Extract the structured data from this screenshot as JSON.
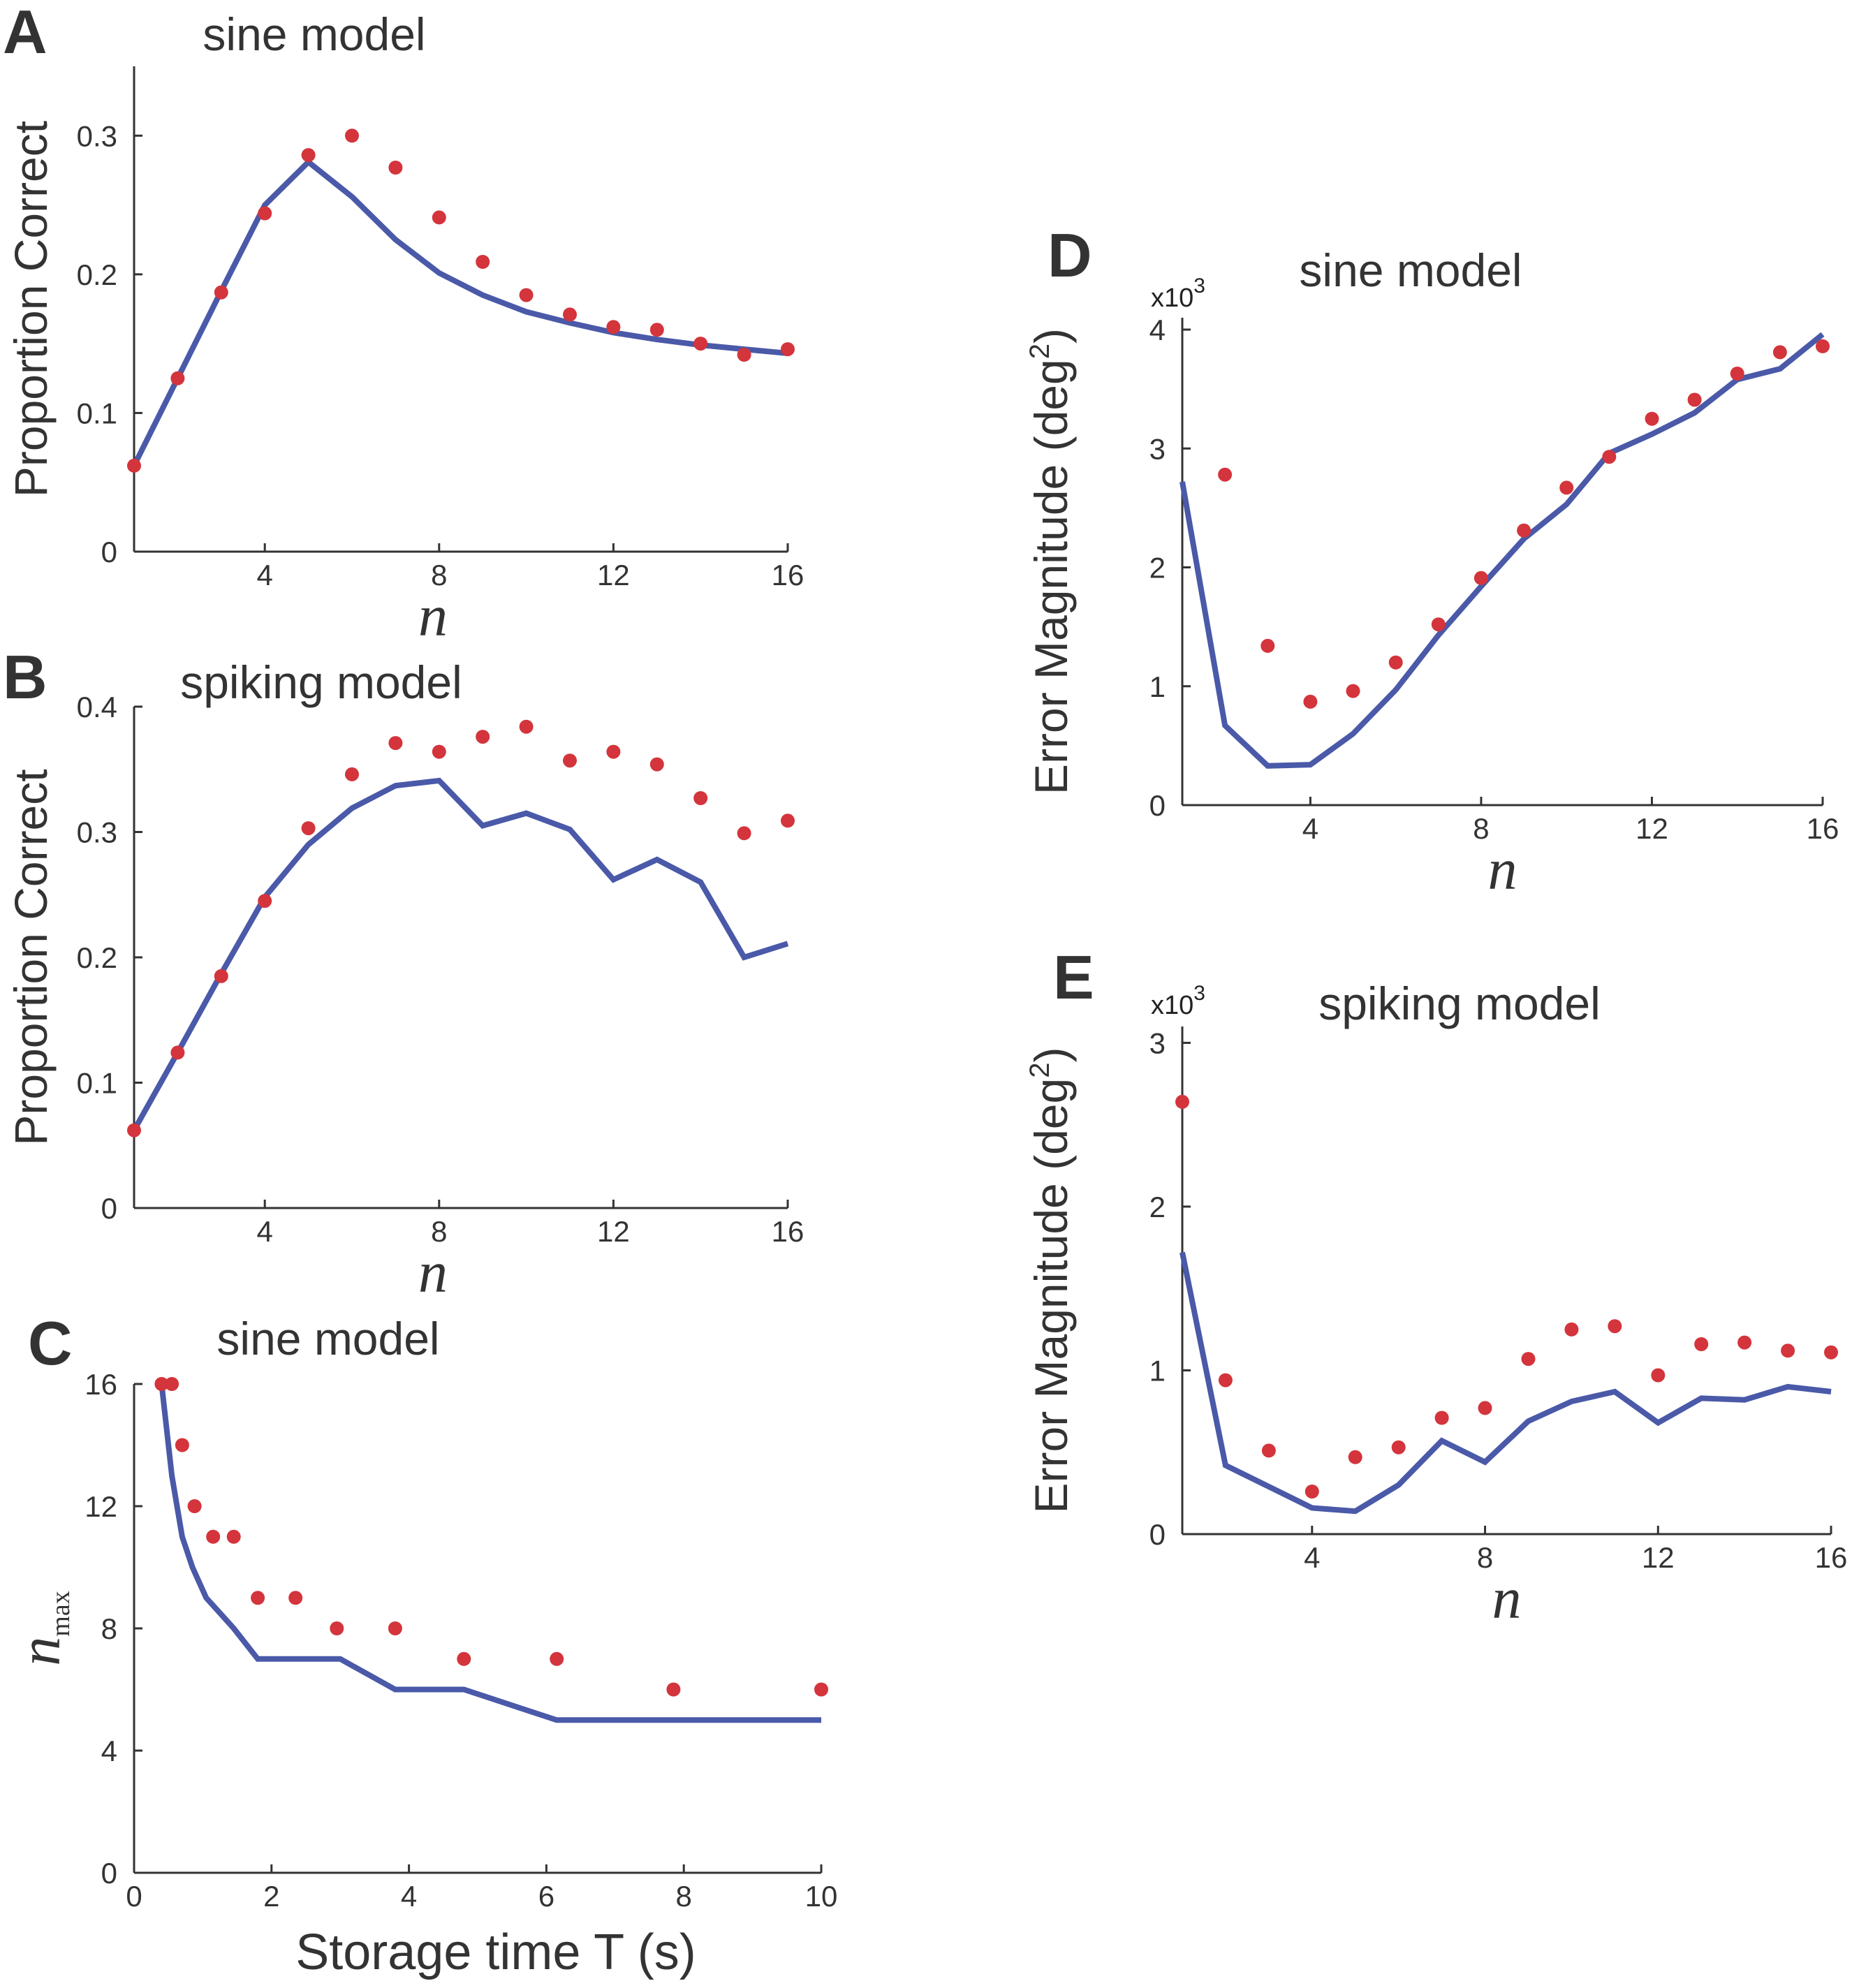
{
  "colors": {
    "model_line": "#4a59a8",
    "data_points": "#d4343c",
    "axis": "#333333"
  },
  "chart_data": [
    {
      "id": "A",
      "panel_letter": "A",
      "type": "line+scatter",
      "title": "sine model",
      "ylabel": "Proportion Correct",
      "xlabel": "n",
      "xlim": [
        1,
        16
      ],
      "ylim": [
        0,
        0.35
      ],
      "xticks": [
        4,
        8,
        12,
        16
      ],
      "xtick_labels": [
        "4",
        "8",
        "12",
        "16"
      ],
      "yticks": [
        0,
        0.1,
        0.2,
        0.3
      ],
      "ytick_labels": [
        "0",
        "0.1",
        "0.2",
        "0.3"
      ],
      "line": {
        "x": [
          1,
          2,
          3,
          4,
          5,
          6,
          7,
          8,
          9,
          10,
          11,
          12,
          13,
          14,
          15,
          16
        ],
        "y": [
          0.062,
          0.125,
          0.188,
          0.25,
          0.281,
          0.256,
          0.225,
          0.201,
          0.185,
          0.173,
          0.165,
          0.158,
          0.153,
          0.149,
          0.146,
          0.143
        ]
      },
      "points": {
        "x": [
          1,
          2,
          3,
          4,
          5,
          6,
          7,
          8,
          9,
          10,
          11,
          12,
          13,
          14,
          15,
          16
        ],
        "y": [
          0.062,
          0.125,
          0.187,
          0.244,
          0.286,
          0.3,
          0.277,
          0.241,
          0.209,
          0.185,
          0.171,
          0.162,
          0.16,
          0.15,
          0.142,
          0.146
        ]
      }
    },
    {
      "id": "B",
      "panel_letter": "B",
      "type": "line+scatter",
      "title": "spiking model",
      "ylabel": "Proportion Correct",
      "xlabel": "n",
      "xlim": [
        1,
        16
      ],
      "ylim": [
        0,
        0.4
      ],
      "xticks": [
        4,
        8,
        12,
        16
      ],
      "xtick_labels": [
        "4",
        "8",
        "12",
        "16"
      ],
      "yticks": [
        0,
        0.1,
        0.2,
        0.3,
        0.4
      ],
      "ytick_labels": [
        "0",
        "0.1",
        "0.2",
        "0.3",
        "0.4"
      ],
      "line": {
        "x": [
          1,
          2,
          3,
          4,
          5,
          6,
          7,
          8,
          9,
          10,
          11,
          12,
          13,
          14,
          15,
          16
        ],
        "y": [
          0.062,
          0.124,
          0.187,
          0.248,
          0.29,
          0.319,
          0.337,
          0.341,
          0.305,
          0.315,
          0.302,
          0.262,
          0.278,
          0.26,
          0.2,
          0.211
        ]
      },
      "points": {
        "x": [
          1,
          2,
          3,
          4,
          5,
          6,
          7,
          8,
          9,
          10,
          11,
          12,
          13,
          14,
          15,
          16
        ],
        "y": [
          0.062,
          0.124,
          0.185,
          0.245,
          0.303,
          0.346,
          0.371,
          0.364,
          0.376,
          0.384,
          0.357,
          0.364,
          0.354,
          0.327,
          0.299,
          0.309
        ]
      }
    },
    {
      "id": "C",
      "panel_letter": "C",
      "type": "line+scatter",
      "title": "sine model",
      "ylabel": "n",
      "ylabel_sub": "max",
      "xlabel": "Storage time T (s)",
      "xlim": [
        0,
        10
      ],
      "ylim": [
        0,
        16
      ],
      "xticks": [
        0,
        2,
        4,
        6,
        8,
        10
      ],
      "xtick_labels": [
        "0",
        "2",
        "4",
        "6",
        "8",
        "10"
      ],
      "yticks": [
        0,
        4,
        8,
        12,
        16
      ],
      "ytick_labels": [
        "0",
        "4",
        "8",
        "12",
        "16"
      ],
      "line": {
        "x": [
          0.4,
          0.55,
          0.7,
          0.85,
          1.05,
          1.25,
          1.45,
          1.8,
          3.0,
          3.8,
          4.8,
          6.15,
          10.0
        ],
        "y": [
          16,
          13,
          11,
          10,
          9,
          8.5,
          8,
          7,
          7,
          6,
          6,
          5,
          5
        ]
      },
      "points": {
        "x": [
          0.4,
          0.55,
          0.7,
          0.88,
          1.15,
          1.45,
          1.8,
          2.35,
          2.95,
          3.8,
          4.8,
          6.15,
          7.85,
          10.0
        ],
        "y": [
          16,
          16,
          14,
          12,
          11,
          11,
          9,
          9,
          8,
          8,
          7,
          7,
          6,
          6
        ]
      }
    },
    {
      "id": "D",
      "panel_letter": "D",
      "type": "line+scatter",
      "title": "sine model",
      "ylabel": "Error Magnitude (deg",
      "ylabel_sup": "2",
      "ylabel_end": ")",
      "y_multiplier": "x10",
      "y_multiplier_exp": "3",
      "xlabel": "n",
      "xlim": [
        1,
        16
      ],
      "ylim": [
        0,
        4.1
      ],
      "xticks": [
        4,
        8,
        12,
        16
      ],
      "xtick_labels": [
        "4",
        "8",
        "12",
        "16"
      ],
      "yticks": [
        0,
        1,
        2,
        3,
        4
      ],
      "ytick_labels": [
        "0",
        "1",
        "2",
        "3",
        "4"
      ],
      "line": {
        "x": [
          1,
          2,
          3,
          4,
          5,
          6,
          7,
          8,
          9,
          10,
          11,
          12,
          13,
          14,
          15,
          16
        ],
        "y": [
          2.72,
          0.67,
          0.33,
          0.34,
          0.6,
          0.97,
          1.43,
          1.84,
          2.24,
          2.53,
          2.96,
          3.12,
          3.3,
          3.58,
          3.67,
          3.96
        ]
      },
      "points": {
        "x": [
          2,
          3,
          4,
          5,
          6,
          7,
          8,
          9,
          10,
          11,
          12,
          13,
          14,
          15,
          16
        ],
        "y": [
          2.78,
          1.34,
          0.87,
          0.96,
          1.2,
          1.52,
          1.91,
          2.31,
          2.67,
          2.93,
          3.25,
          3.41,
          3.63,
          3.81,
          3.86
        ]
      }
    },
    {
      "id": "E",
      "panel_letter": "E",
      "type": "line+scatter",
      "title": "spiking model",
      "ylabel": "Error Magnitude (deg",
      "ylabel_sup": "2",
      "ylabel_end": ")",
      "y_multiplier": "x10",
      "y_multiplier_exp": "3",
      "xlabel": "n",
      "xlim": [
        1,
        16
      ],
      "ylim": [
        0,
        3.1
      ],
      "xticks": [
        4,
        8,
        12,
        16
      ],
      "xtick_labels": [
        "4",
        "8",
        "12",
        "16"
      ],
      "yticks": [
        0,
        1,
        2,
        3
      ],
      "ytick_labels": [
        "0",
        "1",
        "2",
        "3"
      ],
      "line": {
        "x": [
          1,
          2,
          3,
          4,
          5,
          6,
          7,
          8,
          9,
          10,
          11,
          12,
          13,
          14,
          15,
          16
        ],
        "y": [
          1.72,
          0.42,
          0.29,
          0.16,
          0.14,
          0.3,
          0.57,
          0.44,
          0.69,
          0.81,
          0.87,
          0.68,
          0.83,
          0.82,
          0.9,
          0.87
        ]
      },
      "points": {
        "x": [
          1,
          2,
          3,
          4,
          5,
          6,
          7,
          8,
          9,
          10,
          11,
          12,
          13,
          14,
          15,
          16
        ],
        "y": [
          2.64,
          0.94,
          0.51,
          0.26,
          0.47,
          0.53,
          0.71,
          0.77,
          1.07,
          1.25,
          1.27,
          0.97,
          1.16,
          1.17,
          1.12,
          1.11
        ]
      }
    }
  ]
}
